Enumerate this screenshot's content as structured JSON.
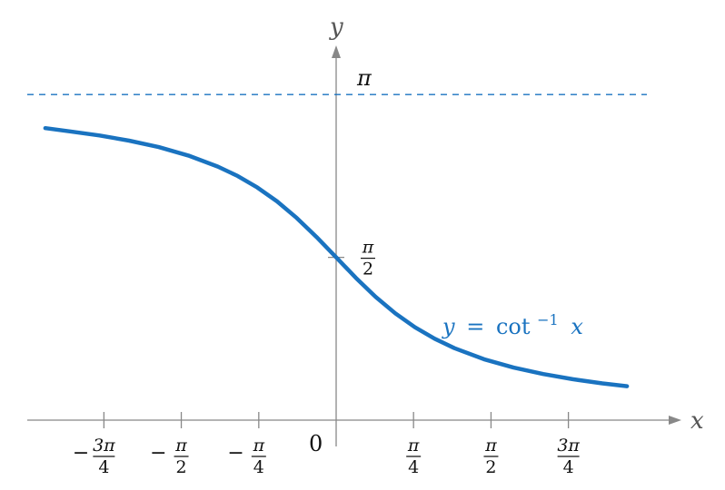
{
  "chart_data": {
    "type": "line",
    "title": "",
    "xlabel": "x",
    "ylabel": "y",
    "xlim": [
      -3.14,
      2.7
    ],
    "ylim": [
      0,
      3.14159
    ],
    "grid": false,
    "curve_label": {
      "lhs": "y",
      "eq": "=",
      "fn": "cot",
      "sup": "−1",
      "arg": "x"
    },
    "asymptote": {
      "y": 3.14159,
      "style": "dashed"
    },
    "x_ticks": [
      {
        "value": -2.356,
        "sign": "−",
        "num": "3π",
        "den": "4"
      },
      {
        "value": -1.571,
        "sign": "−",
        "num": "π",
        "den": "2"
      },
      {
        "value": -0.785,
        "sign": "−",
        "num": "π",
        "den": "4"
      },
      {
        "value": 0.785,
        "sign": "",
        "num": "π",
        "den": "4"
      },
      {
        "value": 1.571,
        "sign": "",
        "num": "π",
        "den": "2"
      },
      {
        "value": 2.356,
        "sign": "",
        "num": "3π",
        "den": "4"
      }
    ],
    "origin_label": "0",
    "y_ticks": [
      {
        "value": 1.571,
        "num": "π",
        "den": "2"
      },
      {
        "value": 3.14159,
        "label": "π"
      }
    ],
    "series": [
      {
        "function": "arccot",
        "x": [
          -2.95,
          -2.7,
          -2.4,
          -2.1,
          -1.8,
          -1.5,
          -1.2,
          -1.0,
          -0.8,
          -0.6,
          -0.4,
          -0.2,
          0.0,
          0.2,
          0.4,
          0.6,
          0.8,
          1.0,
          1.2,
          1.5,
          1.8,
          2.1,
          2.4,
          2.7,
          2.95
        ],
        "y": [
          2.8178,
          2.7866,
          2.7468,
          2.6971,
          2.6345,
          2.5536,
          2.4469,
          2.3562,
          2.2455,
          2.1112,
          1.9513,
          1.7682,
          1.5708,
          1.3734,
          1.1903,
          1.0304,
          0.8961,
          0.7854,
          0.6947,
          0.588,
          0.5071,
          0.4445,
          0.3948,
          0.355,
          0.3272
        ]
      }
    ],
    "colors": {
      "curve": "#1a73c0",
      "asymptote": "#1a73c0",
      "axes": "#888888"
    }
  }
}
